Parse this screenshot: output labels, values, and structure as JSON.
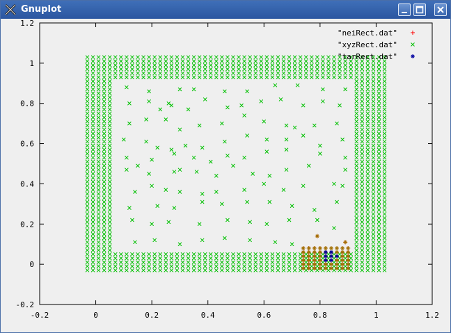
{
  "window": {
    "title": "Gnuplot",
    "icon": "gnuplot-x-icon"
  },
  "titlebar_buttons": {
    "minimize": "minimize-icon",
    "maximize": "maximize-icon",
    "close": "close-icon"
  },
  "chart_data": {
    "type": "scatter",
    "title": "",
    "xlabel": "",
    "ylabel": "",
    "xlim": [
      -0.2,
      1.2
    ],
    "ylim": [
      -0.2,
      1.2
    ],
    "xticks": [
      "-0.2",
      "0",
      "0.2",
      "0.4",
      "0.6",
      "0.8",
      "1",
      "1.2"
    ],
    "yticks": [
      "-0.2",
      "0",
      "0.2",
      "0.4",
      "0.6",
      "0.8",
      "1",
      "1.2"
    ],
    "grid": false,
    "legend_position": "top-right",
    "series": [
      {
        "name": "\"neiRect.dat\"",
        "marker": "+",
        "color": "#ff0000",
        "points": [
          [
            0.74,
            -0.02
          ],
          [
            0.76,
            -0.02
          ],
          [
            0.78,
            -0.02
          ],
          [
            0.8,
            -0.02
          ],
          [
            0.82,
            -0.02
          ],
          [
            0.84,
            -0.02
          ],
          [
            0.86,
            -0.02
          ],
          [
            0.88,
            -0.02
          ],
          [
            0.9,
            -0.02
          ],
          [
            0.74,
            0.0
          ],
          [
            0.76,
            0.0
          ],
          [
            0.78,
            0.0
          ],
          [
            0.8,
            0.0
          ],
          [
            0.82,
            0.0
          ],
          [
            0.84,
            0.0
          ],
          [
            0.86,
            0.0
          ],
          [
            0.88,
            0.0
          ],
          [
            0.9,
            0.0
          ],
          [
            0.74,
            0.02
          ],
          [
            0.76,
            0.02
          ],
          [
            0.78,
            0.02
          ],
          [
            0.8,
            0.02
          ],
          [
            0.82,
            0.02
          ],
          [
            0.84,
            0.02
          ],
          [
            0.86,
            0.02
          ],
          [
            0.88,
            0.02
          ],
          [
            0.9,
            0.02
          ],
          [
            0.74,
            0.04
          ],
          [
            0.76,
            0.04
          ],
          [
            0.78,
            0.04
          ],
          [
            0.8,
            0.04
          ],
          [
            0.82,
            0.04
          ],
          [
            0.84,
            0.04
          ],
          [
            0.86,
            0.04
          ],
          [
            0.88,
            0.04
          ],
          [
            0.9,
            0.04
          ],
          [
            0.74,
            0.06
          ],
          [
            0.76,
            0.06
          ],
          [
            0.78,
            0.06
          ],
          [
            0.8,
            0.06
          ],
          [
            0.82,
            0.06
          ],
          [
            0.84,
            0.06
          ],
          [
            0.86,
            0.06
          ],
          [
            0.88,
            0.06
          ],
          [
            0.9,
            0.06
          ],
          [
            0.74,
            0.08
          ],
          [
            0.76,
            0.08
          ],
          [
            0.78,
            0.08
          ],
          [
            0.8,
            0.08
          ],
          [
            0.82,
            0.08
          ],
          [
            0.84,
            0.08
          ],
          [
            0.86,
            0.08
          ],
          [
            0.88,
            0.08
          ],
          [
            0.9,
            0.08
          ],
          [
            0.79,
            0.14
          ],
          [
            0.89,
            0.11
          ]
        ]
      },
      {
        "name": "\"xyzRect.dat\"",
        "marker": "x",
        "color": "#00c000",
        "border": {
          "x_min": -0.03,
          "x_max": 1.03,
          "y_min": -0.03,
          "y_max": 1.03,
          "thickness": 0.1,
          "step": 0.02
        },
        "interior_points": [
          [
            0.11,
            0.88
          ],
          [
            0.19,
            0.86
          ],
          [
            0.26,
            0.8
          ],
          [
            0.3,
            0.87
          ],
          [
            0.35,
            0.87
          ],
          [
            0.46,
            0.86
          ],
          [
            0.54,
            0.86
          ],
          [
            0.64,
            0.89
          ],
          [
            0.72,
            0.89
          ],
          [
            0.81,
            0.87
          ],
          [
            0.89,
            0.87
          ],
          [
            0.12,
            0.8
          ],
          [
            0.19,
            0.81
          ],
          [
            0.23,
            0.77
          ],
          [
            0.27,
            0.79
          ],
          [
            0.33,
            0.77
          ],
          [
            0.39,
            0.82
          ],
          [
            0.47,
            0.78
          ],
          [
            0.52,
            0.79
          ],
          [
            0.59,
            0.81
          ],
          [
            0.66,
            0.82
          ],
          [
            0.74,
            0.79
          ],
          [
            0.81,
            0.81
          ],
          [
            0.87,
            0.79
          ],
          [
            0.12,
            0.7
          ],
          [
            0.18,
            0.72
          ],
          [
            0.25,
            0.72
          ],
          [
            0.3,
            0.67
          ],
          [
            0.37,
            0.69
          ],
          [
            0.45,
            0.7
          ],
          [
            0.53,
            0.74
          ],
          [
            0.6,
            0.71
          ],
          [
            0.68,
            0.69
          ],
          [
            0.71,
            0.68
          ],
          [
            0.78,
            0.69
          ],
          [
            0.86,
            0.7
          ],
          [
            0.1,
            0.62
          ],
          [
            0.18,
            0.61
          ],
          [
            0.22,
            0.58
          ],
          [
            0.27,
            0.57
          ],
          [
            0.32,
            0.59
          ],
          [
            0.38,
            0.58
          ],
          [
            0.46,
            0.61
          ],
          [
            0.54,
            0.64
          ],
          [
            0.61,
            0.62
          ],
          [
            0.68,
            0.62
          ],
          [
            0.74,
            0.64
          ],
          [
            0.8,
            0.59
          ],
          [
            0.88,
            0.62
          ],
          [
            0.11,
            0.53
          ],
          [
            0.15,
            0.49
          ],
          [
            0.2,
            0.52
          ],
          [
            0.28,
            0.55
          ],
          [
            0.35,
            0.53
          ],
          [
            0.41,
            0.51
          ],
          [
            0.47,
            0.54
          ],
          [
            0.53,
            0.53
          ],
          [
            0.61,
            0.56
          ],
          [
            0.68,
            0.57
          ],
          [
            0.8,
            0.55
          ],
          [
            0.89,
            0.53
          ],
          [
            0.11,
            0.47
          ],
          [
            0.19,
            0.45
          ],
          [
            0.28,
            0.46
          ],
          [
            0.3,
            0.47
          ],
          [
            0.36,
            0.46
          ],
          [
            0.43,
            0.44
          ],
          [
            0.49,
            0.49
          ],
          [
            0.56,
            0.45
          ],
          [
            0.62,
            0.44
          ],
          [
            0.68,
            0.47
          ],
          [
            0.76,
            0.49
          ],
          [
            0.89,
            0.47
          ],
          [
            0.14,
            0.36
          ],
          [
            0.2,
            0.39
          ],
          [
            0.25,
            0.37
          ],
          [
            0.3,
            0.36
          ],
          [
            0.38,
            0.35
          ],
          [
            0.43,
            0.36
          ],
          [
            0.53,
            0.37
          ],
          [
            0.6,
            0.4
          ],
          [
            0.67,
            0.37
          ],
          [
            0.74,
            0.39
          ],
          [
            0.85,
            0.4
          ],
          [
            0.88,
            0.39
          ],
          [
            0.12,
            0.28
          ],
          [
            0.22,
            0.29
          ],
          [
            0.28,
            0.28
          ],
          [
            0.38,
            0.31
          ],
          [
            0.45,
            0.3
          ],
          [
            0.54,
            0.31
          ],
          [
            0.62,
            0.31
          ],
          [
            0.7,
            0.29
          ],
          [
            0.78,
            0.27
          ],
          [
            0.86,
            0.31
          ],
          [
            0.13,
            0.22
          ],
          [
            0.2,
            0.2
          ],
          [
            0.26,
            0.21
          ],
          [
            0.37,
            0.2
          ],
          [
            0.47,
            0.22
          ],
          [
            0.55,
            0.21
          ],
          [
            0.61,
            0.2
          ],
          [
            0.69,
            0.22
          ],
          [
            0.79,
            0.22
          ],
          [
            0.85,
            0.18
          ],
          [
            0.14,
            0.11
          ],
          [
            0.21,
            0.12
          ],
          [
            0.3,
            0.1
          ],
          [
            0.38,
            0.12
          ],
          [
            0.46,
            0.13
          ],
          [
            0.55,
            0.12
          ],
          [
            0.64,
            0.11
          ],
          [
            0.7,
            0.1
          ]
        ]
      },
      {
        "name": "\"tarRect.dat\"",
        "marker": "*",
        "color": "#0000a0",
        "points": [
          [
            0.82,
            0.06
          ],
          [
            0.82,
            0.04
          ],
          [
            0.82,
            0.02
          ],
          [
            0.84,
            0.06
          ],
          [
            0.84,
            0.04
          ],
          [
            0.84,
            0.02
          ],
          [
            0.86,
            0.04
          ]
        ]
      }
    ]
  }
}
